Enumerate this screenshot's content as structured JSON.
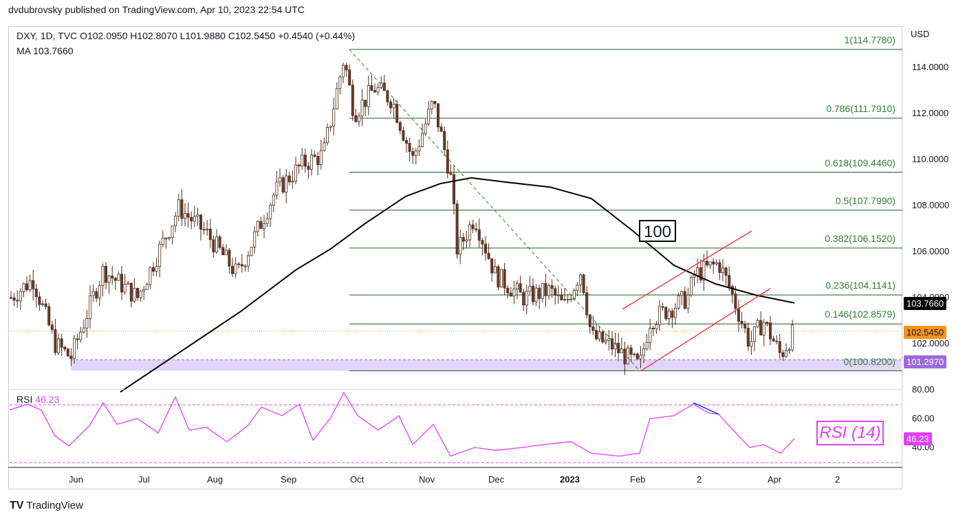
{
  "header": {
    "publisher": "dvdubrovsky published on TradingView.com, Apr 10, 2023 22:54 UTC"
  },
  "legend": {
    "symbol_line": "DXY, 1D, TVC  O102.0950  H102.8070  L101.9880  C102.5450  +0.4540 (+0.44%)",
    "ma_line": "MA  103.7660",
    "rsi_label": "RSI",
    "rsi_value": "46.23"
  },
  "axis": {
    "currency": "USD",
    "price_ticks": [
      "114.0000",
      "112.0000",
      "110.0000",
      "108.0000",
      "106.0000",
      "104.0000",
      "102.0000"
    ],
    "rsi_ticks": [
      "80.00",
      "60.00",
      "40.00"
    ],
    "x_ticks": [
      "Jun",
      "Jul",
      "Aug",
      "Sep",
      "Oct",
      "Nov",
      "Dec",
      "2023",
      "Feb",
      "2",
      "Apr",
      "2"
    ]
  },
  "tags": {
    "ma": "103.7660",
    "close": "102.5450",
    "support": "101.2970",
    "rsi": "46.23"
  },
  "annotations": {
    "ma_period": "100",
    "rsi_box": "RSI (14)"
  },
  "colors": {
    "bull": "#ffffff",
    "bear": "#6d3a25",
    "ma": "#000000",
    "fib": "#1b5e20",
    "channel": "#f23645",
    "rsi": "#e040fb",
    "zone": "#e1d5fb",
    "close_tag": "#f7931a",
    "ma_tag": "#000000",
    "support_tag": "#9c6ade"
  },
  "fib_levels": [
    {
      "label": "1(114.7780)",
      "price": 114.778
    },
    {
      "label": "0.786(111.7910)",
      "price": 111.791
    },
    {
      "label": "0.618(109.4460)",
      "price": 109.446
    },
    {
      "label": "0.5(107.7990)",
      "price": 107.799
    },
    {
      "label": "0.382(106.1520)",
      "price": 106.152
    },
    {
      "label": "0.236(104.1141)",
      "price": 104.1141
    },
    {
      "label": "0.146(102.8579)",
      "price": 102.8579
    },
    {
      "label": "0(100.8200)",
      "price": 100.82
    }
  ],
  "chart_data": {
    "type": "line",
    "title": "DXY, 1D, TVC",
    "ylabel": "USD",
    "ylim": [
      100.0,
      115.5
    ],
    "x": [
      "Jun",
      "Jul",
      "Aug",
      "Sep",
      "Oct",
      "Nov",
      "Dec",
      "2023",
      "Feb",
      "2",
      "Apr"
    ],
    "series": [
      {
        "name": "DXY",
        "values": [
          102.2,
          105.2,
          106.6,
          109.6,
          111.8,
          110.5,
          104.7,
          103.5,
          102.1,
          104.3,
          102.5
        ]
      },
      {
        "name": "MA",
        "values": [
          null,
          null,
          100.9,
          104.0,
          106.2,
          108.9,
          109.1,
          108.5,
          106.3,
          104.3,
          103.8
        ]
      },
      {
        "name": "RSI",
        "values": [
          45,
          66,
          60,
          58,
          70,
          45,
          42,
          40,
          38,
          60,
          46.23
        ]
      }
    ],
    "support_zone": [
      100.82,
      101.297
    ]
  },
  "footer": {
    "brand": "TradingView"
  }
}
